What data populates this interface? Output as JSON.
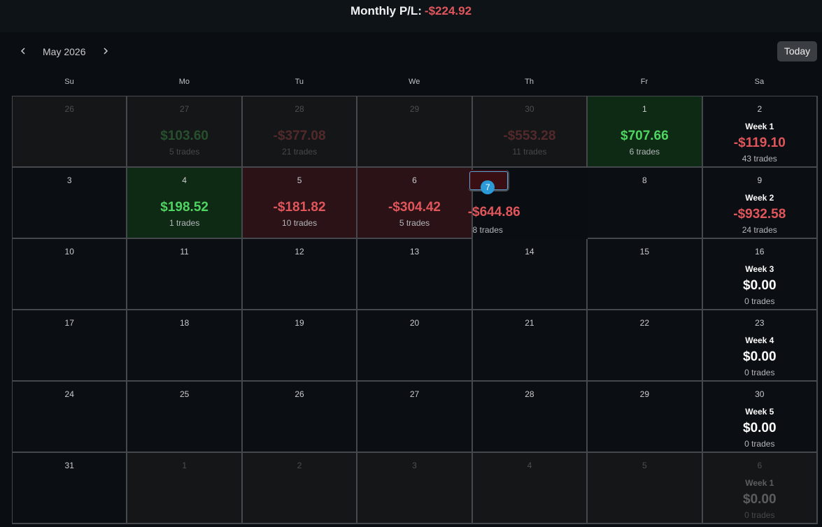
{
  "header": {
    "label": "Monthly P/L:",
    "value": "-$224.92"
  },
  "nav": {
    "month": "May 2026",
    "today": "Today"
  },
  "weekdays": [
    "Su",
    "Mo",
    "Tu",
    "We",
    "Th",
    "Fr",
    "Sa"
  ],
  "weeks": [
    {
      "days": [
        {
          "day": "26",
          "outside": true
        },
        {
          "day": "27",
          "outside": true,
          "pl": "$103.60",
          "trades": "5 trades"
        },
        {
          "day": "28",
          "outside": true,
          "pl": "-$377.08",
          "trades": "21 trades"
        },
        {
          "day": "29",
          "outside": true
        },
        {
          "day": "30",
          "outside": true,
          "pl": "-$553.28",
          "trades": "11 trades"
        },
        {
          "day": "1",
          "pl": "$707.66",
          "trades": "6 trades"
        },
        {
          "day": "2",
          "week": "Week 1",
          "pl": "-$119.10",
          "trades": "43 trades"
        }
      ]
    },
    {
      "days": [
        {
          "day": "3"
        },
        {
          "day": "4",
          "pl": "$198.52",
          "trades": "1 trades"
        },
        {
          "day": "5",
          "pl": "-$181.82",
          "trades": "10 trades"
        },
        {
          "day": "6",
          "pl": "-$304.42",
          "trades": "5 trades"
        },
        {
          "day": "7",
          "today": true,
          "pl": "-$644.86",
          "trades": "8 trades"
        },
        {
          "day": "8"
        },
        {
          "day": "9",
          "week": "Week 2",
          "pl": "-$932.58",
          "trades": "24 trades"
        }
      ]
    },
    {
      "days": [
        {
          "day": "10"
        },
        {
          "day": "11"
        },
        {
          "day": "12"
        },
        {
          "day": "13"
        },
        {
          "day": "14"
        },
        {
          "day": "15"
        },
        {
          "day": "16",
          "week": "Week 3",
          "pl": "$0.00",
          "trades": "0 trades"
        }
      ]
    },
    {
      "days": [
        {
          "day": "17"
        },
        {
          "day": "18"
        },
        {
          "day": "19"
        },
        {
          "day": "20"
        },
        {
          "day": "21"
        },
        {
          "day": "22"
        },
        {
          "day": "23",
          "week": "Week 4",
          "pl": "$0.00",
          "trades": "0 trades"
        }
      ]
    },
    {
      "days": [
        {
          "day": "24"
        },
        {
          "day": "25"
        },
        {
          "day": "26"
        },
        {
          "day": "27"
        },
        {
          "day": "28"
        },
        {
          "day": "29"
        },
        {
          "day": "30",
          "week": "Week 5",
          "pl": "$0.00",
          "trades": "0 trades"
        }
      ]
    },
    {
      "days": [
        {
          "day": "31"
        },
        {
          "day": "1",
          "outside": true
        },
        {
          "day": "2",
          "outside": true
        },
        {
          "day": "3",
          "outside": true
        },
        {
          "day": "4",
          "outside": true
        },
        {
          "day": "5",
          "outside": true
        },
        {
          "day": "6",
          "outside": true,
          "week": "Week 1",
          "pl": "$0.00",
          "trades": "0 trades"
        }
      ]
    }
  ]
}
